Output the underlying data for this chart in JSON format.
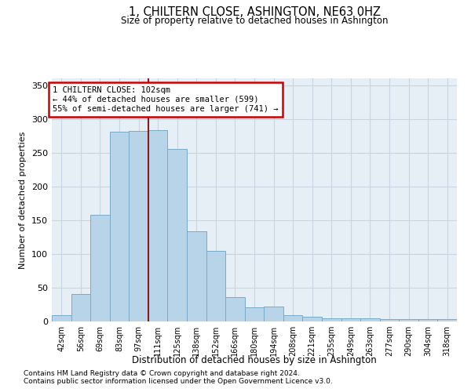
{
  "title": "1, CHILTERN CLOSE, ASHINGTON, NE63 0HZ",
  "subtitle": "Size of property relative to detached houses in Ashington",
  "xlabel": "Distribution of detached houses by size in Ashington",
  "ylabel": "Number of detached properties",
  "bar_labels": [
    "42sqm",
    "56sqm",
    "69sqm",
    "83sqm",
    "97sqm",
    "111sqm",
    "125sqm",
    "138sqm",
    "152sqm",
    "166sqm",
    "180sqm",
    "194sqm",
    "208sqm",
    "221sqm",
    "235sqm",
    "249sqm",
    "263sqm",
    "277sqm",
    "290sqm",
    "304sqm",
    "318sqm"
  ],
  "bar_values": [
    9,
    41,
    158,
    281,
    282,
    283,
    255,
    134,
    104,
    36,
    21,
    22,
    9,
    7,
    5,
    5,
    5,
    4,
    4,
    3,
    3
  ],
  "bar_color": "#b8d4e8",
  "bar_edge_color": "#7aaac8",
  "grid_color": "#c8d4e0",
  "bg_color": "#e6eef6",
  "vline_color": "#8b1a1a",
  "annotation_text": "1 CHILTERN CLOSE: 102sqm\n← 44% of detached houses are smaller (599)\n55% of semi-detached houses are larger (741) →",
  "footer_line1": "Contains HM Land Registry data © Crown copyright and database right 2024.",
  "footer_line2": "Contains public sector information licensed under the Open Government Licence v3.0.",
  "ylim": [
    0,
    360
  ],
  "yticks": [
    0,
    50,
    100,
    150,
    200,
    250,
    300,
    350
  ]
}
